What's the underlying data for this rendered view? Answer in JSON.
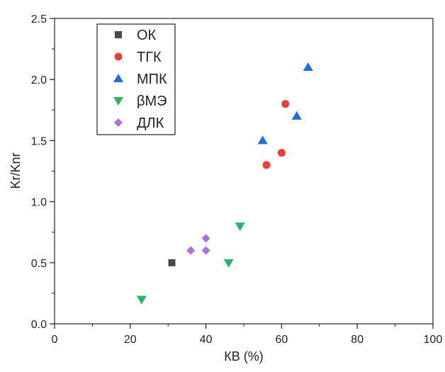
{
  "chart_data": {
    "type": "scatter",
    "xlabel": "КВ (%)",
    "ylabel": "Kr/Knr",
    "xlim": [
      0,
      100
    ],
    "ylim": [
      0,
      2.5
    ],
    "x_ticks": [
      {
        "value": 0,
        "label": "0"
      },
      {
        "value": 20,
        "label": "20"
      },
      {
        "value": 40,
        "label": "40"
      },
      {
        "value": 60,
        "label": "60"
      },
      {
        "value": 80,
        "label": "80"
      },
      {
        "value": 100,
        "label": "100"
      }
    ],
    "y_ticks": [
      {
        "value": 0,
        "label": "0.0"
      },
      {
        "value": 0.5,
        "label": "0.5"
      },
      {
        "value": 1.0,
        "label": "1.0"
      },
      {
        "value": 1.5,
        "label": "1.5"
      },
      {
        "value": 2.0,
        "label": "2.0"
      },
      {
        "value": 2.5,
        "label": "2.5"
      }
    ],
    "grid": false,
    "legend": "top-left",
    "series": [
      {
        "name": "ОК",
        "marker": "square",
        "color": "#4a4a4a",
        "points": [
          [
            31,
            0.5
          ]
        ]
      },
      {
        "name": "ТГК",
        "marker": "circle",
        "color": "#e8413c",
        "points": [
          [
            56,
            1.3
          ],
          [
            60,
            1.4
          ],
          [
            61,
            1.8
          ]
        ]
      },
      {
        "name": "МПК",
        "marker": "triangle-up",
        "color": "#1f6fd6",
        "points": [
          [
            55,
            1.5
          ],
          [
            64,
            1.7
          ],
          [
            67,
            2.1
          ]
        ]
      },
      {
        "name": "βМЭ",
        "marker": "triangle-down",
        "color": "#2bb36a",
        "points": [
          [
            23,
            0.2
          ],
          [
            46,
            0.5
          ],
          [
            49,
            0.8
          ]
        ]
      },
      {
        "name": "ДЛК",
        "marker": "diamond",
        "color": "#b070d8",
        "points": [
          [
            36,
            0.6
          ],
          [
            40,
            0.6
          ],
          [
            40,
            0.7
          ]
        ]
      }
    ]
  }
}
